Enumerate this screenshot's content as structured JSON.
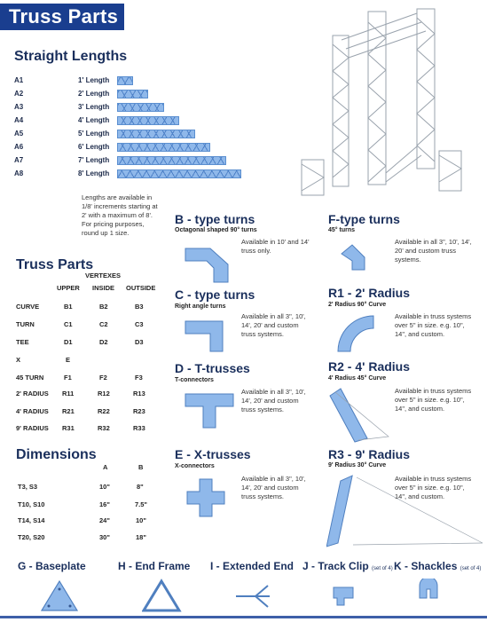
{
  "title": "Truss Parts",
  "straight": {
    "heading": "Straight Lengths",
    "rows": [
      {
        "code": "A1",
        "label": "1' Length",
        "frac": 0.125
      },
      {
        "code": "A2",
        "label": "2' Length",
        "frac": 0.25
      },
      {
        "code": "A3",
        "label": "3' Length",
        "frac": 0.375
      },
      {
        "code": "A4",
        "label": "4' Length",
        "frac": 0.5
      },
      {
        "code": "A5",
        "label": "5' Length",
        "frac": 0.625
      },
      {
        "code": "A6",
        "label": "6' Length",
        "frac": 0.75
      },
      {
        "code": "A7",
        "label": "7' Length",
        "frac": 0.875
      },
      {
        "code": "A8",
        "label": "8' Length",
        "frac": 1.0
      }
    ],
    "note": [
      "Lengths are available in",
      "1/8' increments starting at",
      "2' with a maximum of 8'.",
      "For pricing purposes,",
      "round up 1 size."
    ]
  },
  "parts": {
    "heading": "Truss Parts",
    "vertexes": "VERTEXES",
    "cols": [
      "UPPER",
      "INSIDE",
      "OUTSIDE"
    ],
    "rows": [
      [
        "CURVE",
        "B1",
        "B2",
        "B3"
      ],
      [
        "TURN",
        "C1",
        "C2",
        "C3"
      ],
      [
        "TEE",
        "D1",
        "D2",
        "D3"
      ],
      [
        "X",
        "E",
        "",
        ""
      ],
      [
        "45 TURN",
        "F1",
        "F2",
        "F3"
      ],
      [
        "2' RADIUS",
        "R11",
        "R12",
        "R13"
      ],
      [
        "4' RADIUS",
        "R21",
        "R22",
        "R23"
      ],
      [
        "9' RADIUS",
        "R31",
        "R32",
        "R33"
      ]
    ]
  },
  "dimensions": {
    "heading": "Dimensions",
    "cols": [
      "A",
      "B"
    ],
    "rows": [
      [
        "T3, S3",
        "10\"",
        "8\""
      ],
      [
        "T10, S10",
        "16\"",
        "7.5\""
      ],
      [
        "T14, S14",
        "24\"",
        "10\""
      ],
      [
        "T20, S20",
        "30\"",
        "18\""
      ]
    ]
  },
  "sections": {
    "b": {
      "title": "B - type turns",
      "sub": "Octagonal shaped 90° turns",
      "note": [
        "Available in 10' and 14'",
        "truss only."
      ]
    },
    "c": {
      "title": "C - type turns",
      "sub": "Right angle turns",
      "note": [
        "Available in all 3\", 10',",
        "14', 20' and custom",
        "truss systems."
      ]
    },
    "d": {
      "title": "D - T-trusses",
      "sub": "T-connectors",
      "note": [
        "Available in all 3\", 10',",
        "14', 20' and custom",
        "truss systems."
      ]
    },
    "e": {
      "title": "E - X-trusses",
      "sub": "X-connectors",
      "note": [
        "Available in all 3\", 10',",
        "14', 20' and custom",
        "truss systems."
      ]
    },
    "f": {
      "title": "F-type turns",
      "sub": "45° turns",
      "note": [
        "Available in all 3\", 10', 14',",
        "20' and custom truss",
        "systems."
      ]
    },
    "r1": {
      "title": "R1 - 2' Radius",
      "sub": "2' Radius 90° Curve",
      "note": [
        "Available in truss systems",
        "over 5\" in size.  e.g. 10\",",
        "14\", and custom."
      ]
    },
    "r2": {
      "title": "R2 - 4' Radius",
      "sub": "4' Radius 45° Curve",
      "note": [
        "Available in truss systems",
        "over 5\" in size.  e.g. 10\",",
        "14\", and custom."
      ]
    },
    "r3": {
      "title": "R3 - 9' Radius",
      "sub": "9' Radius 30° Curve",
      "note": [
        "Available in truss systems",
        "over 5\" in size.  e.g. 10\",",
        "14\", and custom."
      ]
    }
  },
  "bottom": {
    "g": "G - Baseplate",
    "h": "H - End Frame",
    "i": "I - Extended End",
    "j": "J - Track Clip",
    "j_note": "(set of 4)",
    "k": "K - Shackles",
    "k_note": "(set of 4)"
  }
}
